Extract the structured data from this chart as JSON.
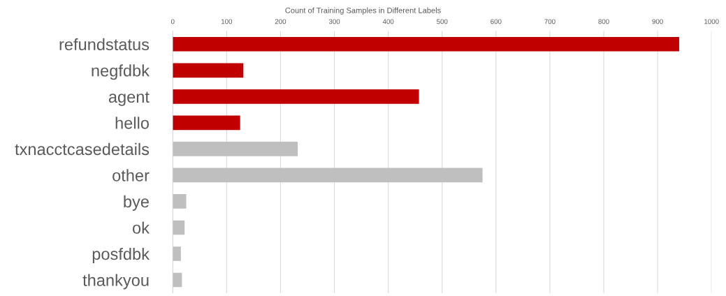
{
  "chart_data": {
    "type": "bar",
    "orientation": "horizontal",
    "title": "Count of Training Samples in Different Labels",
    "categories": [
      "refundstatus",
      "negfdbk",
      "agent",
      "hello",
      "txnacctcasedetails",
      "other",
      "bye",
      "ok",
      "posfdbk",
      "thankyou"
    ],
    "values": [
      940,
      131,
      457,
      125,
      232,
      575,
      25,
      22,
      15,
      17
    ],
    "colors": [
      "#c00000",
      "#c00000",
      "#c00000",
      "#c00000",
      "#bfbfbf",
      "#bfbfbf",
      "#bfbfbf",
      "#bfbfbf",
      "#bfbfbf",
      "#bfbfbf"
    ],
    "xlim": [
      0,
      1000
    ],
    "xticks": [
      0,
      100,
      200,
      300,
      400,
      500,
      600,
      700,
      800,
      900,
      1000
    ],
    "grid": "x"
  }
}
